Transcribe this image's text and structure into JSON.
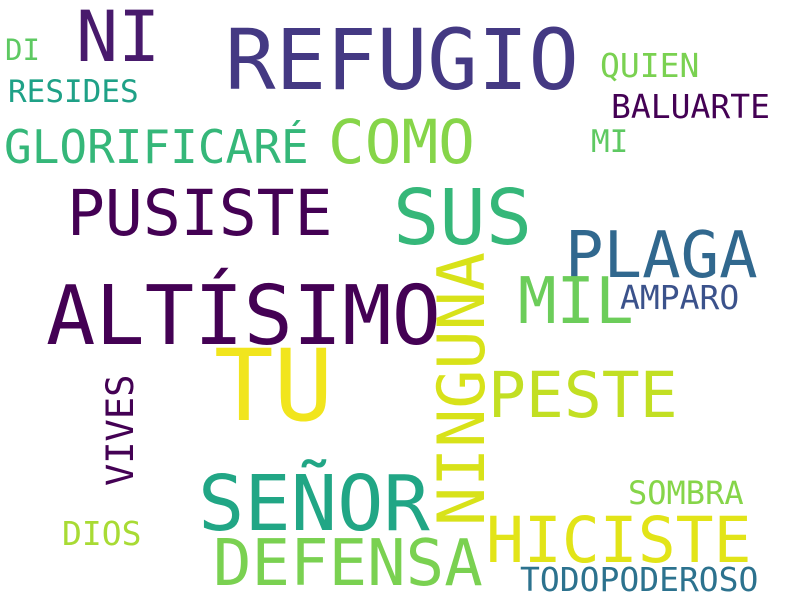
{
  "words": [
    {
      "text": "REFUGIO",
      "color": "#443983"
    },
    {
      "text": "NI",
      "color": "#481a6c"
    },
    {
      "text": "DI",
      "color": "#5ec962"
    },
    {
      "text": "RESIDES",
      "color": "#1fa187"
    },
    {
      "text": "QUIEN",
      "color": "#7ad151"
    },
    {
      "text": "BALUARTE",
      "color": "#440154"
    },
    {
      "text": "MI",
      "color": "#5ec962"
    },
    {
      "text": "GLORIFICARÉ",
      "color": "#35b779"
    },
    {
      "text": "COMO",
      "color": "#86d549"
    },
    {
      "text": "PUSISTE",
      "color": "#440154"
    },
    {
      "text": "SUS",
      "color": "#35b779"
    },
    {
      "text": "PLAGA",
      "color": "#31688e"
    },
    {
      "text": "ALTÍSIMO",
      "color": "#440154"
    },
    {
      "text": "MIL",
      "color": "#6ccd5a"
    },
    {
      "text": "AMPARO",
      "color": "#3b528b"
    },
    {
      "text": "NINGUNA",
      "color": "#d8e219"
    },
    {
      "text": "TU",
      "color": "#f1e51d"
    },
    {
      "text": "PESTE",
      "color": "#c2df23"
    },
    {
      "text": "VIVES",
      "color": "#440154"
    },
    {
      "text": "SEÑOR",
      "color": "#21a685"
    },
    {
      "text": "SOMBRA",
      "color": "#86d549"
    },
    {
      "text": "HICISTE",
      "color": "#e2e418"
    },
    {
      "text": "DIOS",
      "color": "#a8db34"
    },
    {
      "text": "DEFENSA",
      "color": "#7ad151"
    },
    {
      "text": "TODOPODEROSO",
      "color": "#2c728e"
    }
  ]
}
